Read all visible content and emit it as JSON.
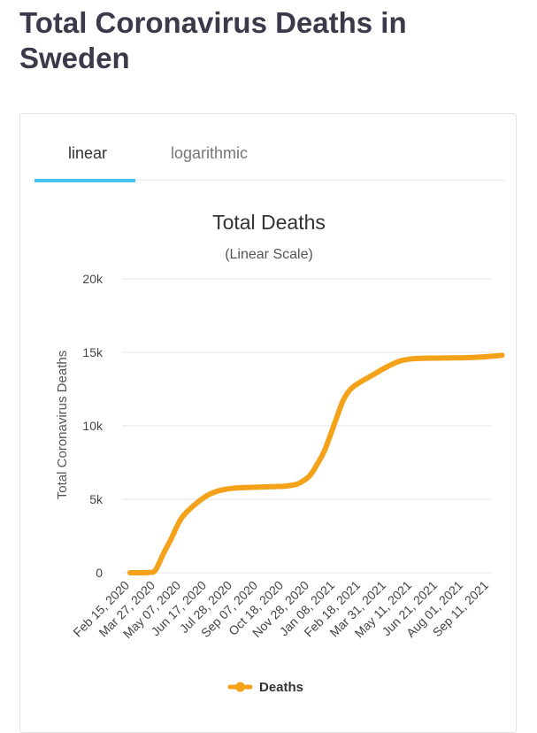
{
  "page": {
    "title": "Total Coronavirus Deaths in Sweden"
  },
  "tabs": [
    {
      "label": "linear",
      "active": true
    },
    {
      "label": "logarithmic",
      "active": false
    }
  ],
  "colors": {
    "series": "#f5a21b",
    "tab_active": "#45c4ef",
    "grid": "#e6e6e6"
  },
  "chart_data": {
    "type": "line",
    "title": "Total Deaths",
    "subtitle": "(Linear Scale)",
    "xlabel": "",
    "ylabel": "Total Coronavirus Deaths",
    "ylim": [
      0,
      20000
    ],
    "grid": true,
    "legend_position": "bottom",
    "y_ticks": [
      {
        "value": 0,
        "label": "0"
      },
      {
        "value": 5000,
        "label": "5k"
      },
      {
        "value": 10000,
        "label": "10k"
      },
      {
        "value": 15000,
        "label": "15k"
      },
      {
        "value": 20000,
        "label": "20k"
      }
    ],
    "x_tick_labels": [
      "Feb 15, 2020",
      "Mar 27, 2020",
      "May 07, 2020",
      "Jun 17, 2020",
      "Jul 28, 2020",
      "Sep 07, 2020",
      "Oct 18, 2020",
      "Nov 28, 2020",
      "Jan 08, 2021",
      "Feb 18, 2021",
      "Mar 31, 2021",
      "May 11, 2021",
      "Jun 21, 2021",
      "Aug 01, 2021",
      "Sep 11, 2021"
    ],
    "series": [
      {
        "name": "Deaths",
        "color": "#f5a21b",
        "x_index": [
          0,
          0.5,
          0.8,
          1.0,
          1.3,
          1.6,
          2.0,
          2.5,
          3.0,
          3.5,
          4.0,
          4.5,
          5.0,
          5.5,
          6.0,
          6.3,
          6.6,
          7.0,
          7.3,
          7.6,
          8.0,
          8.3,
          8.6,
          9.0,
          9.5,
          10.0,
          10.5,
          11.0,
          11.5,
          12.0,
          12.5,
          13.0,
          13.5,
          14.0,
          14.5
        ],
        "values": [
          0,
          0,
          30,
          200,
          1300,
          2300,
          3700,
          4600,
          5250,
          5600,
          5750,
          5800,
          5830,
          5860,
          5890,
          5950,
          6100,
          6600,
          7400,
          8400,
          10300,
          11700,
          12500,
          13000,
          13500,
          14000,
          14400,
          14560,
          14600,
          14610,
          14620,
          14630,
          14660,
          14720,
          14800
        ]
      }
    ]
  }
}
